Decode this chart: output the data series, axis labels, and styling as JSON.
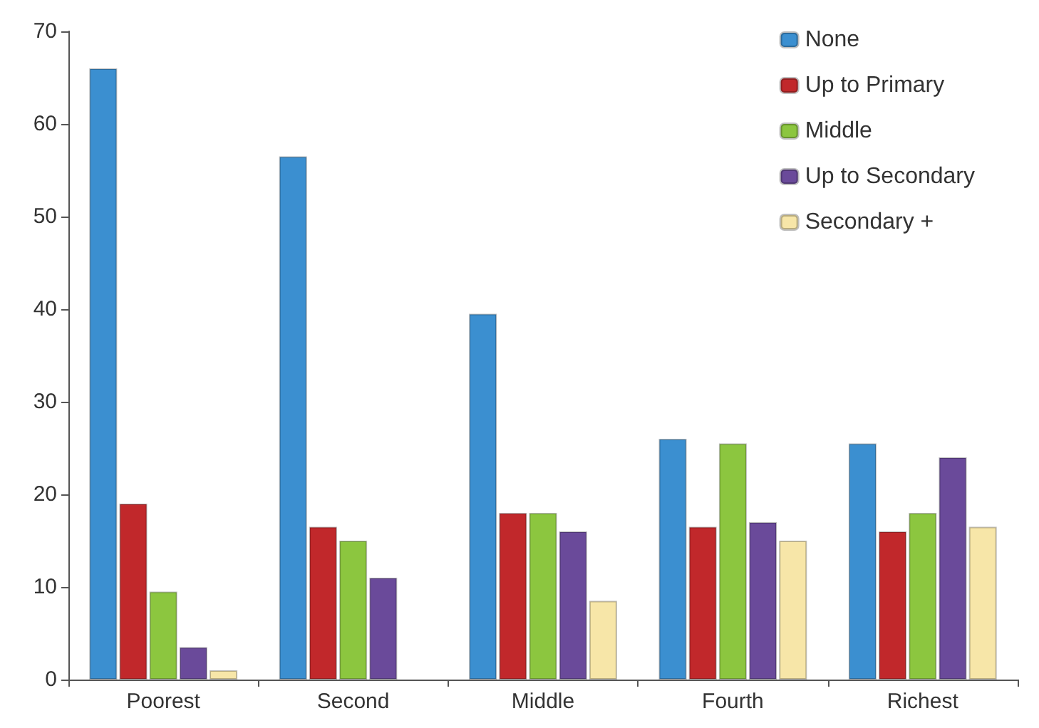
{
  "chart_data": {
    "type": "bar",
    "categories": [
      "Poorest",
      "Second",
      "Middle",
      "Fourth",
      "Richest"
    ],
    "series": [
      {
        "name": "None",
        "color": "#3b8fd0",
        "values": [
          66,
          56.5,
          39.5,
          26,
          25.5
        ]
      },
      {
        "name": "Up to Primary",
        "color": "#c1282b",
        "values": [
          19,
          16.5,
          18,
          16.5,
          16
        ]
      },
      {
        "name": "Middle",
        "color": "#8cc63f",
        "values": [
          9.5,
          15,
          18,
          25.5,
          18
        ]
      },
      {
        "name": "Up to Secondary",
        "color": "#6a4a9a",
        "values": [
          3.5,
          11,
          16,
          17,
          24
        ]
      },
      {
        "name": "Secondary +",
        "color": "#f7e6a8",
        "values": [
          1,
          null,
          8.5,
          15,
          16.5
        ]
      }
    ],
    "ylim": [
      0,
      70
    ],
    "yticks": [
      0,
      10,
      20,
      30,
      40,
      50,
      60,
      70
    ],
    "grid": false,
    "legend": "top right"
  }
}
